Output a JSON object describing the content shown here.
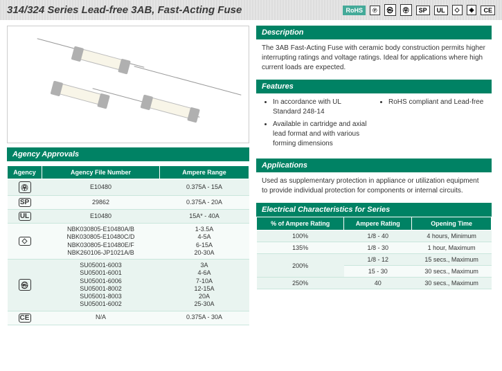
{
  "header": {
    "title": "314/324 Series Lead-free 3AB, Fast-Acting Fuse"
  },
  "certs": [
    "RoHS",
    "℗",
    "㉿",
    "㉾",
    "SP",
    "UL",
    "◇",
    "◈",
    "CE"
  ],
  "description": {
    "heading": "Description",
    "text": "The 3AB Fast-Acting Fuse with ceramic body construction permits higher interrupting ratings and voltage ratings. Ideal for applications where high current loads are expected."
  },
  "features": {
    "heading": "Features",
    "left": [
      "In accordance with UL Standard 248-14",
      "Available in cartridge and axial lead format and with various forming dimensions"
    ],
    "right": [
      "RoHS compliant and Lead-free"
    ]
  },
  "applications": {
    "heading": "Applications",
    "text": "Used as supplementary protection in appliance or utilization equipment to provide individual protection for components or internal circuits."
  },
  "agency": {
    "heading": "Agency Approvals",
    "cols": [
      "Agency",
      "Agency File Number",
      "Ampere Range"
    ],
    "rows": [
      {
        "icon": "㉾",
        "file": "E10480",
        "range": "0.375A - 15A"
      },
      {
        "icon": "SP",
        "file": "29862",
        "range": "0.375A - 20A"
      },
      {
        "icon": "UL",
        "file": "E10480",
        "range": "15A* - 40A"
      },
      {
        "icon": "◇",
        "file": "NBK030805-E10480A/B\nNBK030805-E10480C/D\nNBK030805-E10480E/F\nNBK260106-JP1021A/B",
        "range": "1-3.5A\n4-5A\n6-15A\n20-30A"
      },
      {
        "icon": "㉿",
        "file": "SU05001-6003\nSU05001-6001\nSU05001-6006\nSU05001-8002\nSU05001-8003\nSU05001-6002",
        "range": "3A\n4-6A\n7-10A\n12-15A\n20A\n25-30A"
      },
      {
        "icon": "CE",
        "file": "N/A",
        "range": "0.375A - 30A"
      }
    ]
  },
  "electrical": {
    "heading": "Electrical Characteristics for Series",
    "cols": [
      "% of Ampere Rating",
      "Ampere Rating",
      "Opening Time"
    ],
    "rows": [
      {
        "pct": "100%",
        "amp": "1/8 - 40",
        "time": "4 hours, Minimum"
      },
      {
        "pct": "135%",
        "amp": "1/8 - 30",
        "time": "1 hour, Maximum"
      },
      {
        "pct": "200%",
        "amp": "1/8 - 12",
        "time": "15 secs., Maximum",
        "rowspan": 2
      },
      {
        "pct": "",
        "amp": "15 - 30",
        "time": "30 secs., Maximum"
      },
      {
        "pct": "250%",
        "amp": "40",
        "time": "30 secs., Maximum"
      }
    ]
  },
  "colors": {
    "brand_green": "#008264",
    "row_bg": "#e9f4f0",
    "row_alt": "#f6fbf9"
  }
}
